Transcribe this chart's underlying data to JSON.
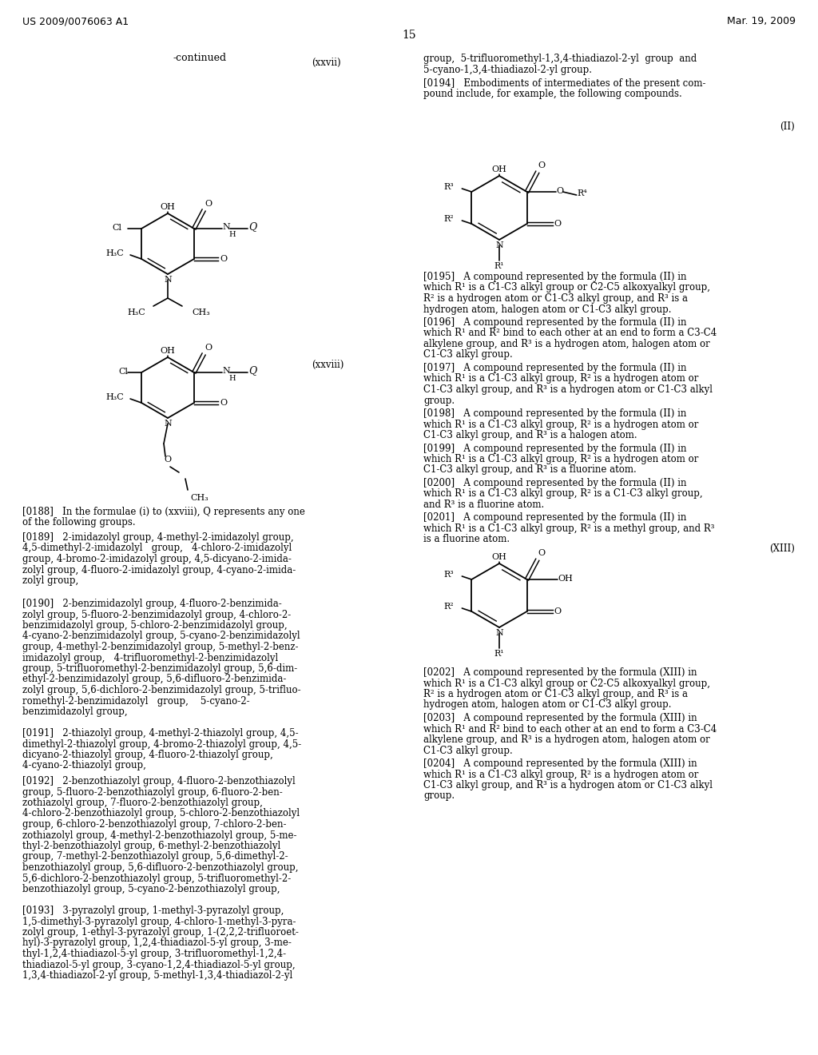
{
  "page_number": "15",
  "patent_number": "US 2009/0076063 A1",
  "patent_date": "Mar. 19, 2009",
  "bg": "#ffffff"
}
